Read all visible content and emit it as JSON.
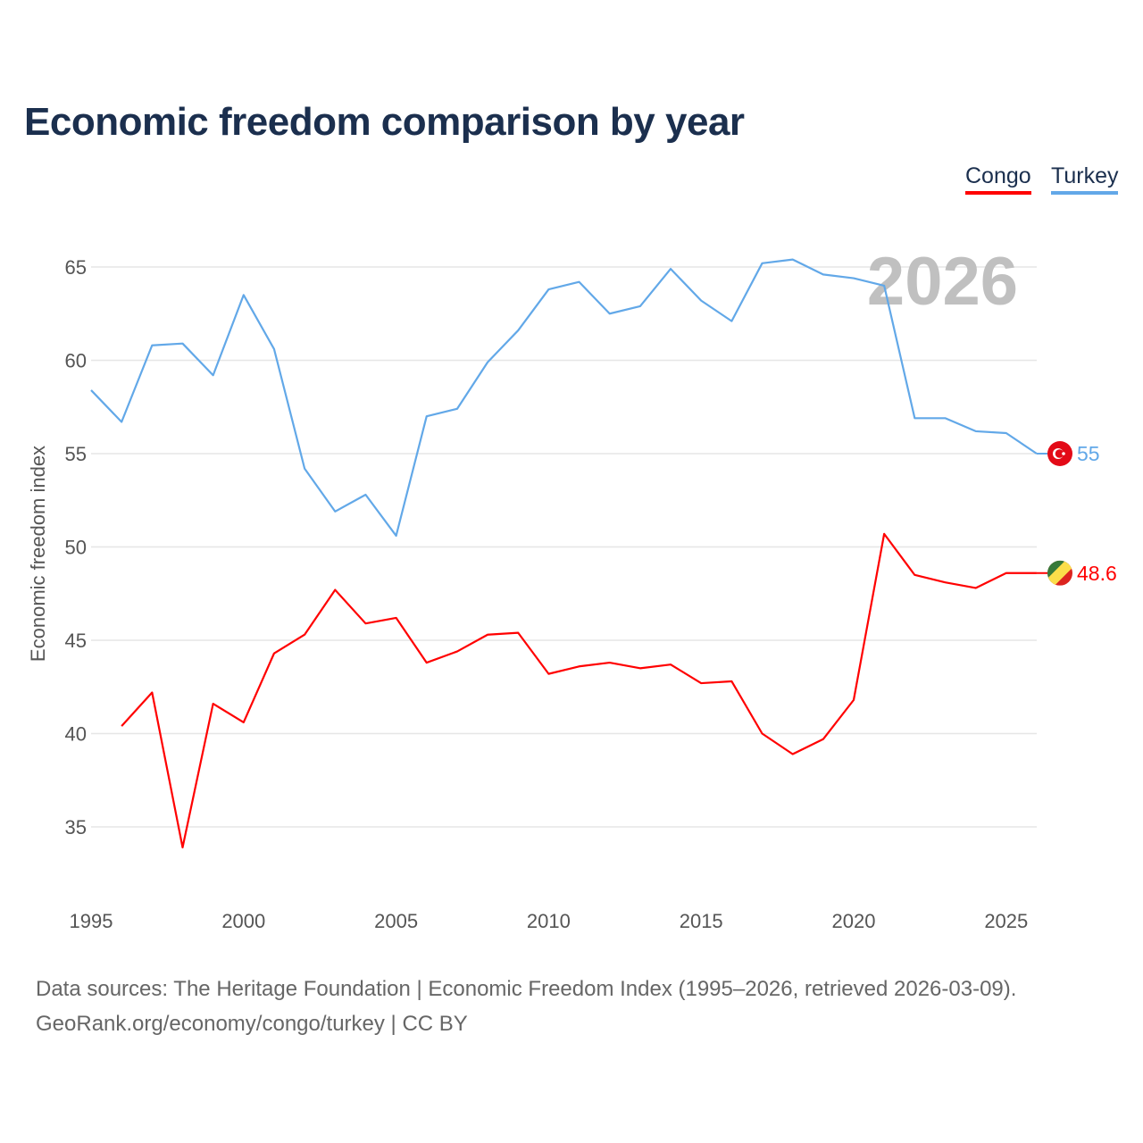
{
  "chart_data": {
    "type": "line",
    "title": "Economic freedom comparison by year",
    "xlabel": "",
    "ylabel": "Economic freedom index",
    "xlim": [
      1995,
      2026
    ],
    "ylim": [
      32,
      67
    ],
    "grid": true,
    "legend_position": "top-right",
    "year_watermark": "2026",
    "x_ticks": [
      "1995",
      "2000",
      "2005",
      "2010",
      "2015",
      "2020",
      "2025"
    ],
    "y_ticks": [
      "35",
      "40",
      "45",
      "50",
      "55",
      "60",
      "65"
    ],
    "series": [
      {
        "name": "Congo",
        "color": "#ff0000",
        "end_label": "48.6",
        "x": [
          1996,
          1997,
          1998,
          1999,
          2000,
          2001,
          2002,
          2003,
          2004,
          2005,
          2006,
          2007,
          2008,
          2009,
          2010,
          2011,
          2012,
          2013,
          2014,
          2015,
          2016,
          2017,
          2018,
          2019,
          2020,
          2021,
          2022,
          2023,
          2024,
          2025,
          2026
        ],
        "values": [
          40.4,
          42.2,
          33.9,
          41.6,
          40.6,
          44.3,
          45.3,
          47.7,
          45.9,
          46.2,
          43.8,
          44.4,
          45.3,
          45.4,
          43.2,
          43.6,
          43.8,
          43.5,
          43.7,
          42.7,
          42.8,
          40.0,
          38.9,
          39.7,
          41.8,
          50.7,
          48.5,
          48.1,
          47.8,
          48.6,
          48.6
        ]
      },
      {
        "name": "Turkey",
        "color": "#62a8e8",
        "end_label": "55",
        "x": [
          1995,
          1996,
          1997,
          1998,
          1999,
          2000,
          2001,
          2002,
          2003,
          2004,
          2005,
          2006,
          2007,
          2008,
          2009,
          2010,
          2011,
          2012,
          2013,
          2014,
          2015,
          2016,
          2017,
          2018,
          2019,
          2020,
          2021,
          2022,
          2023,
          2024,
          2025,
          2026
        ],
        "values": [
          58.4,
          56.7,
          60.8,
          60.9,
          59.2,
          63.5,
          60.6,
          54.2,
          51.9,
          52.8,
          50.6,
          57.0,
          57.4,
          59.9,
          61.6,
          63.8,
          64.2,
          62.5,
          62.9,
          64.9,
          63.2,
          62.1,
          65.2,
          65.4,
          64.6,
          64.4,
          64.0,
          56.9,
          56.9,
          56.2,
          56.1,
          55.0
        ]
      }
    ]
  },
  "footer": {
    "line1": "Data sources: The Heritage Foundation | Economic Freedom Index (1995–2026, retrieved 2026-03-09).",
    "line2": "GeoRank.org/economy/congo/turkey | CC BY"
  }
}
